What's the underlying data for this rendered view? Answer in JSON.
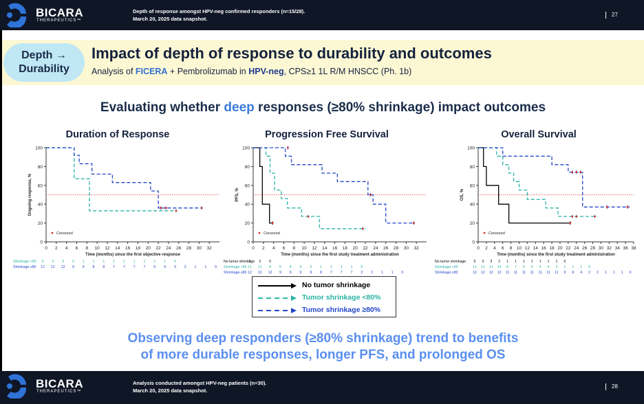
{
  "brand": {
    "name": "BICARA",
    "tagline": "THERAPEUTICS™"
  },
  "top_bar": {
    "note_line1": "Depth of response amongst HPV-neg confirmed responders (n=15/28).",
    "note_line2": "March 20, 2025 data snapshot.",
    "page_number": "27"
  },
  "bottom_bar": {
    "note_line1": "Analysis conducted amongst HPV-neg patients (n=30).",
    "note_line2": "March 20, 2025 data snapshot.",
    "page_number": "28"
  },
  "header": {
    "pill_line1": "Depth →",
    "pill_line2": "Durability",
    "title": "Impact of depth of response to durability and outcomes",
    "subtitle_pre": "Analysis of ",
    "subtitle_drug": "FICERA",
    "subtitle_mid": " + Pembrolizumab in ",
    "subtitle_pop": "HPV-neg",
    "subtitle_post": ", CPS≥1 1L R/M HNSCC (Ph. 1b)"
  },
  "question": {
    "pre": "Evaluating whether ",
    "highlight": "deep",
    "post": " responses (≥80% shrinkage) impact outcomes"
  },
  "legend": {
    "none": "No tumor shrinkage",
    "lt80": "Tumor shrinkage <80%",
    "ge80": "Tumor shrinkage ≥80%"
  },
  "conclusion": {
    "line1": "Observing deep responders (≥80% shrinkage) trend to benefits",
    "line2": "of more durable responses, longer PFS, and prolonged OS"
  },
  "colors": {
    "none": "#000000",
    "lt80": "#2ab3a6",
    "ge80": "#2346c8",
    "reference": "#e53935",
    "censor": "#d32f2f"
  },
  "chart_data": [
    {
      "type": "line",
      "title": "Duration of Response",
      "xlabel": "Time (months) since the first objective response",
      "ylabel": "Ongoing response, %",
      "xlim": [
        0,
        34
      ],
      "ylim": [
        0,
        100
      ],
      "xticks": [
        0,
        2,
        4,
        6,
        8,
        10,
        12,
        14,
        16,
        18,
        20,
        22,
        24,
        26,
        28,
        30,
        32
      ],
      "yticks": [
        0,
        20,
        40,
        60,
        80,
        100
      ],
      "reference_line": 50,
      "censored_label": "Censored",
      "series": [
        {
          "name": "Shrinkage <80",
          "key": "lt80",
          "x": [
            0,
            5.5,
            5.5,
            8.5,
            8.5,
            25.5
          ],
          "y": [
            100,
            100,
            67,
            67,
            33,
            33
          ],
          "censored": [
            [
              25.5,
              33
            ]
          ]
        },
        {
          "name": "Shrinkage ≥80",
          "key": "ge80",
          "x": [
            0,
            5.5,
            5.5,
            6.5,
            6.5,
            9,
            9,
            13,
            13,
            20.5,
            20.5,
            22,
            22,
            30.5
          ],
          "y": [
            100,
            100,
            92,
            92,
            83,
            83,
            72,
            72,
            63,
            63,
            54,
            54,
            36,
            36
          ],
          "censored": [
            [
              22.5,
              36
            ],
            [
              23.5,
              36
            ],
            [
              30.5,
              36
            ]
          ]
        }
      ],
      "risk_table": [
        {
          "label": "Shrinkage <80",
          "key": "lt80",
          "values": [
            "3",
            "3",
            "3",
            "2",
            "1",
            "1",
            "1",
            "1",
            "1",
            "1",
            "1",
            "1",
            "1",
            "0"
          ]
        },
        {
          "label": "Shrinkage ≥80",
          "key": "ge80",
          "values": [
            "12",
            "12",
            "12",
            "9",
            "9",
            "8",
            "8",
            "7",
            "7",
            "7",
            "7",
            "6",
            "4",
            "3",
            "2",
            "1",
            "1",
            "0"
          ]
        }
      ]
    },
    {
      "type": "line",
      "title": "Progression Free Survival",
      "xlabel": "Time (months) since the first study treatment administration",
      "ylabel": "PFS, %",
      "xlim": [
        0,
        34
      ],
      "ylim": [
        0,
        100
      ],
      "xticks": [
        0,
        2,
        4,
        6,
        8,
        10,
        12,
        14,
        16,
        18,
        20,
        22,
        24,
        26,
        28,
        30,
        32
      ],
      "yticks": [
        0,
        20,
        40,
        60,
        80,
        100
      ],
      "reference_line": 50,
      "censored_label": "Censored",
      "series": [
        {
          "name": "No tumor shrinkage",
          "key": "none",
          "x": [
            0,
            1.3,
            1.3,
            1.8,
            1.8,
            3.2,
            3.2,
            4
          ],
          "y": [
            100,
            100,
            80,
            80,
            40,
            40,
            20,
            20
          ],
          "censored": [
            [
              3.8,
              20
            ]
          ]
        },
        {
          "name": "Shrinkage <80",
          "key": "lt80",
          "x": [
            0,
            2.5,
            2.5,
            3.3,
            3.3,
            4.2,
            4.2,
            5.5,
            5.5,
            6.7,
            6.7,
            9.5,
            9.5,
            13,
            13,
            22
          ],
          "y": [
            100,
            100,
            91,
            91,
            73,
            73,
            55,
            55,
            46,
            46,
            36,
            36,
            27,
            27,
            14,
            14
          ],
          "censored": [
            [
              10.8,
              27
            ],
            [
              21.5,
              14
            ]
          ]
        },
        {
          "name": "Shrinkage ≥80",
          "key": "ge80",
          "x": [
            0,
            6.3,
            6.3,
            7.5,
            7.5,
            13.5,
            13.5,
            16.5,
            16.5,
            22.5,
            22.5,
            23.5,
            23.5,
            26,
            26,
            31.5
          ],
          "y": [
            100,
            100,
            91,
            91,
            82,
            82,
            73,
            73,
            64,
            64,
            50,
            50,
            40,
            40,
            20,
            20
          ],
          "censored": [
            [
              6.8,
              100
            ],
            [
              23,
              50
            ],
            [
              31.5,
              20
            ]
          ]
        }
      ],
      "risk_table": [
        {
          "label": "No tumor shrinkage",
          "key": "none",
          "values": [
            "5",
            "2",
            "0"
          ]
        },
        {
          "label": "Shrinkage <80",
          "key": "lt80",
          "values": [
            "11",
            "11",
            "8",
            "5",
            "4",
            "3",
            "2",
            "1",
            "1",
            "1",
            "1",
            "0"
          ]
        },
        {
          "label": "Shrinkage ≥80",
          "key": "ge80",
          "values": [
            "12",
            "12",
            "12",
            "9",
            "9",
            "9",
            "9",
            "8",
            "7",
            "7",
            "7",
            "2",
            "2",
            "1",
            "1",
            "0"
          ]
        }
      ]
    },
    {
      "type": "line",
      "title": "Overall Survival",
      "xlabel": "Time (months) since the first study treatment administration",
      "ylabel": "OS, %",
      "xlim": [
        0,
        38
      ],
      "ylim": [
        0,
        100
      ],
      "xticks": [
        0,
        2,
        4,
        6,
        8,
        10,
        12,
        14,
        16,
        18,
        20,
        22,
        24,
        26,
        28,
        30,
        32,
        34,
        36,
        38
      ],
      "yticks": [
        0,
        20,
        40,
        60,
        80,
        100
      ],
      "reference_line": 50,
      "censored_label": "Censored",
      "series": [
        {
          "name": "No tumor shrinkage",
          "key": "none",
          "x": [
            0,
            1.3,
            1.3,
            2,
            2,
            5,
            5,
            7.5,
            7.5,
            22.5
          ],
          "y": [
            100,
            100,
            80,
            80,
            60,
            60,
            40,
            40,
            20,
            20
          ],
          "censored": [
            [
              22.5,
              20
            ]
          ]
        },
        {
          "name": "Shrinkage <80",
          "key": "lt80",
          "x": [
            0,
            4.5,
            4.5,
            6,
            6,
            7.5,
            7.5,
            8.7,
            8.7,
            10,
            10,
            12,
            12,
            16.5,
            16.5,
            19.5,
            19.5,
            29
          ],
          "y": [
            100,
            100,
            91,
            91,
            82,
            82,
            73,
            73,
            64,
            64,
            55,
            55,
            45,
            45,
            36,
            36,
            27,
            27
          ],
          "censored": [
            [
              23,
              27
            ],
            [
              24,
              27
            ],
            [
              28.5,
              27
            ]
          ]
        },
        {
          "name": "Shrinkage ≥80",
          "key": "ge80",
          "x": [
            0,
            6,
            6,
            18,
            18,
            22,
            22,
            25.5,
            25.5,
            37
          ],
          "y": [
            100,
            100,
            91,
            91,
            82,
            82,
            74,
            74,
            37,
            37
          ],
          "censored": [
            [
              23,
              74
            ],
            [
              24,
              74
            ],
            [
              25,
              74
            ],
            [
              31.5,
              37
            ],
            [
              36.5,
              37
            ]
          ]
        }
      ],
      "risk_table": [
        {
          "label": "No tumor shrinkage",
          "key": "none",
          "values": [
            "5",
            "3",
            "3",
            "2",
            "1",
            "1",
            "1",
            "1",
            "1",
            "1",
            "1",
            "0"
          ]
        },
        {
          "label": "Shrinkage <80",
          "key": "lt80",
          "values": [
            "11",
            "11",
            "11",
            "10",
            "8",
            "7",
            "5",
            "5",
            "4",
            "4",
            "3",
            "1",
            "1",
            "1",
            "0"
          ]
        },
        {
          "label": "Shrinkage ≥80",
          "key": "ge80",
          "values": [
            "12",
            "12",
            "12",
            "12",
            "11",
            "11",
            "11",
            "11",
            "11",
            "11",
            "11",
            "9",
            "8",
            "4",
            "2",
            "2",
            "1",
            "1",
            "1",
            "0"
          ]
        }
      ]
    }
  ]
}
